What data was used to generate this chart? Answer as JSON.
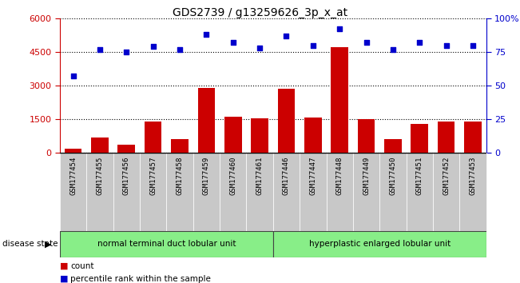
{
  "title": "GDS2739 / g13259626_3p_x_at",
  "categories": [
    "GSM177454",
    "GSM177455",
    "GSM177456",
    "GSM177457",
    "GSM177458",
    "GSM177459",
    "GSM177460",
    "GSM177461",
    "GSM177446",
    "GSM177447",
    "GSM177448",
    "GSM177449",
    "GSM177450",
    "GSM177451",
    "GSM177452",
    "GSM177453"
  ],
  "bar_values": [
    200,
    700,
    350,
    1400,
    600,
    2900,
    1600,
    1550,
    2850,
    1580,
    4700,
    1500,
    600,
    1300,
    1400,
    1400
  ],
  "percentile_values": [
    57,
    77,
    75,
    79,
    77,
    88,
    82,
    78,
    87,
    80,
    92,
    82,
    77,
    82,
    80,
    80
  ],
  "ylim_left": [
    0,
    6000
  ],
  "ylim_right": [
    0,
    100
  ],
  "yticks_left": [
    0,
    1500,
    3000,
    4500,
    6000
  ],
  "yticks_right": [
    0,
    25,
    50,
    75,
    100
  ],
  "bar_color": "#cc0000",
  "dot_color": "#0000cc",
  "group1_label": "normal terminal duct lobular unit",
  "group2_label": "hyperplastic enlarged lobular unit",
  "group1_count": 8,
  "group2_count": 8,
  "group_color": "#88ee88",
  "legend_bar_label": "count",
  "legend_dot_label": "percentile rank within the sample",
  "disease_state_label": "disease state",
  "background_color": "#ffffff",
  "tick_bg_color": "#c8c8c8",
  "bar_color_hex": "#cc0000",
  "dot_color_hex": "#0000cc"
}
